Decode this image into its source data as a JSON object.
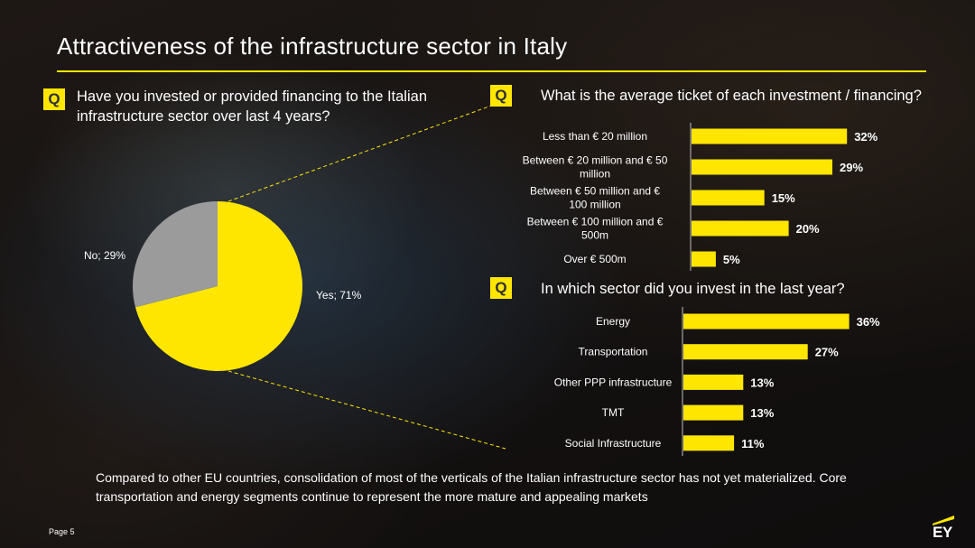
{
  "title": "Attractiveness of the infrastructure sector in Italy",
  "badge_label": "Q",
  "questions": {
    "q1": "Have you invested or provided financing to the Italian infrastructure sector over last 4 years?",
    "q2": "What is the average ticket of each investment / financing?",
    "q3": "In which sector did you invest in the last year?"
  },
  "chart_data": [
    {
      "type": "pie",
      "labels": [
        "Yes",
        "No"
      ],
      "values": [
        71,
        29
      ],
      "data_labels": [
        "Yes; 71%",
        "No; 29%"
      ],
      "colors": [
        "#ffe600",
        "#9b9b9b"
      ]
    },
    {
      "type": "bar",
      "orientation": "horizontal",
      "categories": [
        "Less than € 20 million",
        "Between € 20 million and € 50 million",
        "Between € 50 million and € 100 million",
        "Between € 100 million and € 500m",
        "Over € 500m"
      ],
      "category_lines": [
        [
          "Less than € 20 million"
        ],
        [
          "Between € 20 million and € 50",
          "million"
        ],
        [
          "Between € 50 million and €",
          "100 million"
        ],
        [
          "Between € 100 million and €",
          "500m"
        ],
        [
          "Over € 500m"
        ]
      ],
      "values": [
        32,
        29,
        15,
        20,
        5
      ],
      "data_labels": [
        "32%",
        "29%",
        "15%",
        "20%",
        "5%"
      ],
      "color": "#ffe600"
    },
    {
      "type": "bar",
      "orientation": "horizontal",
      "categories": [
        "Energy",
        "Transportation",
        "Other PPP infrastructure",
        "TMT",
        "Social Infrastructure"
      ],
      "category_lines": [
        [
          "Energy"
        ],
        [
          "Transportation"
        ],
        [
          "Other PPP infrastructure"
        ],
        [
          "TMT"
        ],
        [
          "Social Infrastructure"
        ]
      ],
      "values": [
        36,
        27,
        13,
        13,
        11
      ],
      "data_labels": [
        "36%",
        "27%",
        "13%",
        "13%",
        "11%"
      ],
      "color": "#ffe600"
    }
  ],
  "footer_text": "Compared to other EU countries, consolidation of most of the verticals of the Italian infrastructure sector has not yet materialized. Core transportation and energy segments continue to  represent the more mature and appealing markets",
  "page_label": "Page 5",
  "logo_text": "EY",
  "colors": {
    "accent": "#ffe600",
    "pie_secondary": "#9b9b9b",
    "text": "#ffffff"
  }
}
